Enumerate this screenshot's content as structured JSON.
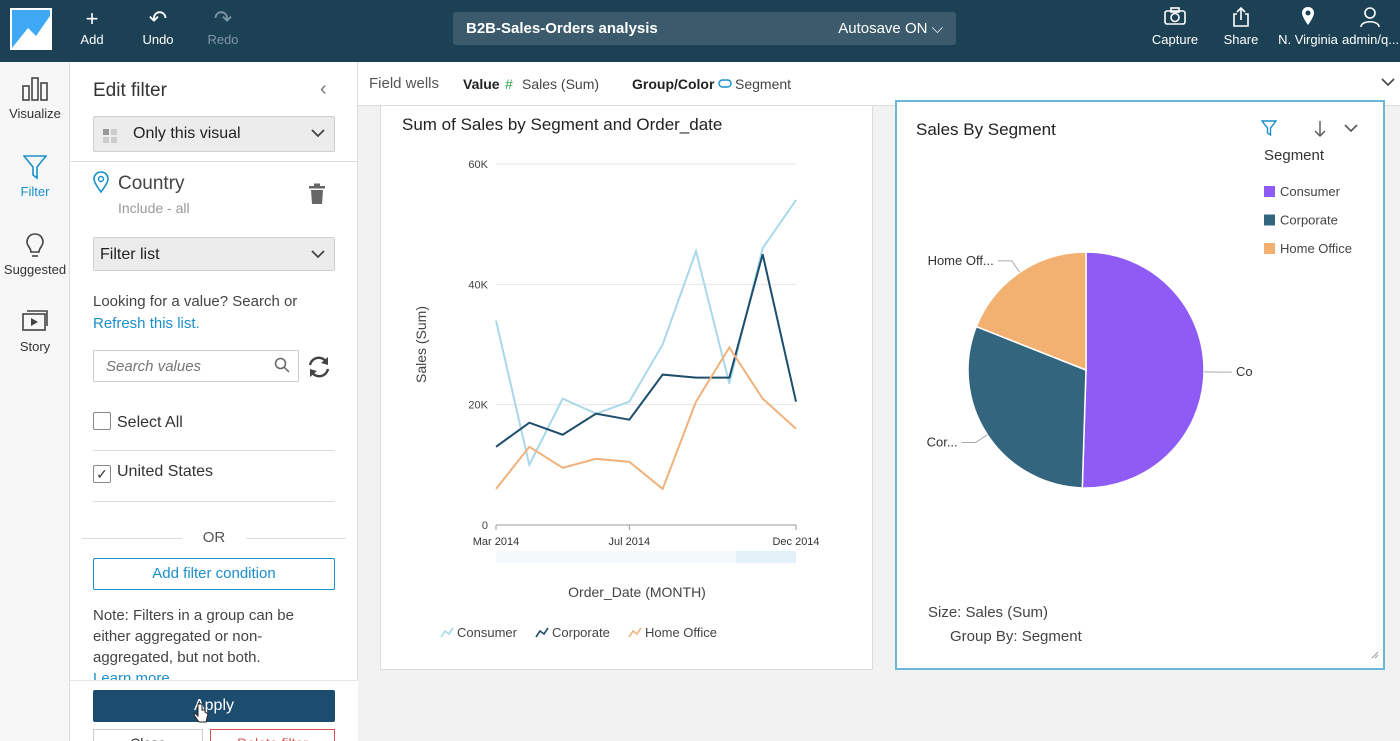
{
  "topbar": {
    "add_label": "Add",
    "undo_label": "Undo",
    "redo_label": "Redo",
    "analysis_name": "B2B-Sales-Orders analysis",
    "autosave_label": "Autosave ON",
    "capture_label": "Capture",
    "share_label": "Share",
    "region_label": "N. Virginia",
    "user_label": "admin/q..."
  },
  "rail": {
    "visualize": "Visualize",
    "filter": "Filter",
    "suggested": "Suggested",
    "story": "Story"
  },
  "filter_panel": {
    "title": "Edit filter",
    "scope": "Only this visual",
    "field_name": "Country",
    "field_status": "Include - all",
    "filter_type": "Filter list",
    "help_text": "Looking for a value? Search or",
    "refresh_link": "Refresh this list.",
    "search_placeholder": "Search values",
    "select_all_label": "Select All",
    "select_all_checked": false,
    "items": [
      {
        "label": "United States",
        "checked": true
      }
    ],
    "or_label": "OR",
    "add_condition_label": "Add filter condition",
    "note": "Note: Filters in a group can be either aggregated or non-aggregated, but not both.",
    "learn_more": "Learn more",
    "apply_label": "Apply",
    "close_label": "Close",
    "delete_label": "Delete filter"
  },
  "field_wells": {
    "label": "Field wells",
    "value_label": "Value",
    "value_field": "Sales (Sum)",
    "group_label": "Group/Color",
    "group_field": "Segment"
  },
  "colors": {
    "consumer_line": "#a8d8ea",
    "corporate_line": "#1d4e6b",
    "home_office_line": "#f0b27a",
    "consumer_pie": "#8e5bf5",
    "corporate_pie": "#33657f",
    "home_office_pie": "#f2b171",
    "accent": "#1a8fc9"
  },
  "chart_data": [
    {
      "type": "line",
      "title": "Sum of Sales by Segment and Order_date",
      "xlabel": "Order_Date (MONTH)",
      "ylabel": "Sales (Sum)",
      "x": [
        "Mar 2014",
        "Apr 2014",
        "May 2014",
        "Jun 2014",
        "Jul 2014",
        "Aug 2014",
        "Sep 2014",
        "Oct 2014",
        "Nov 2014",
        "Dec 2014"
      ],
      "x_tick_labels": [
        "Mar 2014",
        "Jul 2014",
        "Dec 2014"
      ],
      "y_ticks": [
        "0",
        "20K",
        "40K",
        "60K"
      ],
      "ylim": [
        0,
        60000
      ],
      "grid": true,
      "legend": "bottom",
      "series": [
        {
          "name": "Consumer",
          "values": [
            34000,
            10000,
            21000,
            18500,
            20500,
            30000,
            45500,
            23500,
            46000,
            54000
          ]
        },
        {
          "name": "Corporate",
          "values": [
            13000,
            17000,
            15000,
            18500,
            17500,
            25000,
            24500,
            24500,
            45000,
            20500
          ]
        },
        {
          "name": "Home Office",
          "values": [
            6000,
            13000,
            9500,
            11000,
            10500,
            6000,
            20500,
            29500,
            21000,
            16000
          ]
        }
      ]
    },
    {
      "type": "pie",
      "title": "Sales By Segment",
      "legend_title": "Segment",
      "legend": "top-right",
      "categories": [
        "Consumer",
        "Corporate",
        "Home Office"
      ],
      "values": [
        50.5,
        30.5,
        19
      ],
      "slice_labels": [
        "Co",
        "Cor...",
        "Home Off..."
      ],
      "size_label": "Size: Sales (Sum)",
      "group_label": "Group By: Segment"
    }
  ]
}
